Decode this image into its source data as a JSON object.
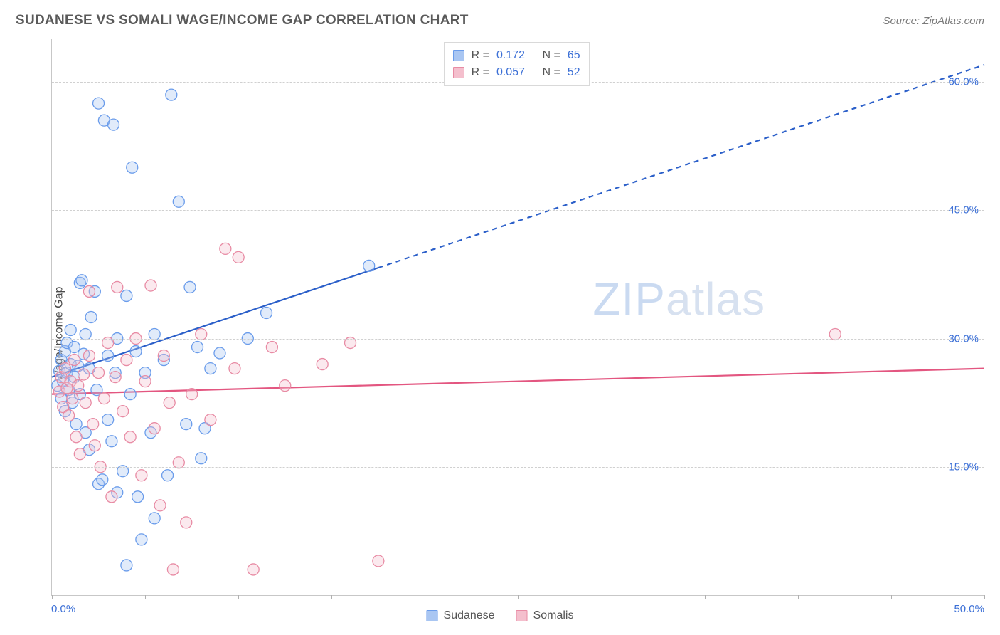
{
  "title": "SUDANESE VS SOMALI WAGE/INCOME GAP CORRELATION CHART",
  "source": "Source: ZipAtlas.com",
  "ylabel": "Wage/Income Gap",
  "watermark_bold": "ZIP",
  "watermark_thin": "atlas",
  "chart": {
    "type": "scatter",
    "background_color": "#ffffff",
    "grid_color": "#d0d0d0",
    "axis_color": "#c7c7c7",
    "tick_label_color": "#3b6fd6",
    "xlim": [
      0,
      50
    ],
    "ylim": [
      0,
      65
    ],
    "yticks": [
      15,
      30,
      45,
      60
    ],
    "ytick_labels": [
      "15.0%",
      "30.0%",
      "45.0%",
      "60.0%"
    ],
    "xtick_positions": [
      0,
      5,
      10,
      15,
      20,
      25,
      30,
      35,
      40,
      45,
      50
    ],
    "x_origin_label": "0.0%",
    "x_max_label": "50.0%",
    "marker_radius": 8,
    "marker_stroke_width": 1.3,
    "marker_fill_opacity": 0.35,
    "series": [
      {
        "name": "Sudanese",
        "color_stroke": "#6a9ceb",
        "color_fill": "#a9c6f2",
        "trend_color": "#2b5fc9",
        "trend_width": 2.2,
        "R": "0.172",
        "N": "65",
        "trend": {
          "x1": 0,
          "y1": 25.5,
          "x2": 50,
          "y2": 62,
          "solid_until_x": 17.5
        },
        "points": [
          [
            0.3,
            24.5
          ],
          [
            0.4,
            26.2
          ],
          [
            0.5,
            23.0
          ],
          [
            0.5,
            27.5
          ],
          [
            0.6,
            25.0
          ],
          [
            0.7,
            28.5
          ],
          [
            0.7,
            21.5
          ],
          [
            0.8,
            26.0
          ],
          [
            0.8,
            29.5
          ],
          [
            0.9,
            24.0
          ],
          [
            1.0,
            27.0
          ],
          [
            1.0,
            31.0
          ],
          [
            1.1,
            22.5
          ],
          [
            1.2,
            25.5
          ],
          [
            1.2,
            29.0
          ],
          [
            1.3,
            20.0
          ],
          [
            1.4,
            26.8
          ],
          [
            1.5,
            23.5
          ],
          [
            1.5,
            36.5
          ],
          [
            1.6,
            36.8
          ],
          [
            1.7,
            28.2
          ],
          [
            1.8,
            19.0
          ],
          [
            1.8,
            30.5
          ],
          [
            2.0,
            26.5
          ],
          [
            2.0,
            17.0
          ],
          [
            2.1,
            32.5
          ],
          [
            2.3,
            35.5
          ],
          [
            2.4,
            24.0
          ],
          [
            2.5,
            13.0
          ],
          [
            2.5,
            57.5
          ],
          [
            2.7,
            13.5
          ],
          [
            2.8,
            55.5
          ],
          [
            3.0,
            20.5
          ],
          [
            3.0,
            28.0
          ],
          [
            3.2,
            18.0
          ],
          [
            3.3,
            55.0
          ],
          [
            3.4,
            26.0
          ],
          [
            3.5,
            30.0
          ],
          [
            3.5,
            12.0
          ],
          [
            3.8,
            14.5
          ],
          [
            4.0,
            35.0
          ],
          [
            4.0,
            3.5
          ],
          [
            4.2,
            23.5
          ],
          [
            4.3,
            50.0
          ],
          [
            4.5,
            28.5
          ],
          [
            4.6,
            11.5
          ],
          [
            4.8,
            6.5
          ],
          [
            5.0,
            26.0
          ],
          [
            5.3,
            19.0
          ],
          [
            5.5,
            30.5
          ],
          [
            5.5,
            9.0
          ],
          [
            6.0,
            27.5
          ],
          [
            6.2,
            14.0
          ],
          [
            6.4,
            58.5
          ],
          [
            6.8,
            46.0
          ],
          [
            7.2,
            20.0
          ],
          [
            7.4,
            36.0
          ],
          [
            7.8,
            29.0
          ],
          [
            8.0,
            16.0
          ],
          [
            8.2,
            19.5
          ],
          [
            8.5,
            26.5
          ],
          [
            9.0,
            28.3
          ],
          [
            10.5,
            30.0
          ],
          [
            11.5,
            33.0
          ],
          [
            17.0,
            38.5
          ]
        ]
      },
      {
        "name": "Somalis",
        "color_stroke": "#e88ba4",
        "color_fill": "#f4bfcd",
        "trend_color": "#e35680",
        "trend_width": 2.2,
        "R": "0.057",
        "N": "52",
        "trend": {
          "x1": 0,
          "y1": 23.5,
          "x2": 50,
          "y2": 26.5,
          "solid_until_x": 50
        },
        "points": [
          [
            0.4,
            23.8
          ],
          [
            0.5,
            25.5
          ],
          [
            0.6,
            22.0
          ],
          [
            0.7,
            26.5
          ],
          [
            0.8,
            24.2
          ],
          [
            0.9,
            21.0
          ],
          [
            1.0,
            25.0
          ],
          [
            1.1,
            23.0
          ],
          [
            1.2,
            27.5
          ],
          [
            1.3,
            18.5
          ],
          [
            1.4,
            24.5
          ],
          [
            1.5,
            16.5
          ],
          [
            1.7,
            25.8
          ],
          [
            1.8,
            22.5
          ],
          [
            2.0,
            28.0
          ],
          [
            2.0,
            35.5
          ],
          [
            2.2,
            20.0
          ],
          [
            2.3,
            17.5
          ],
          [
            2.5,
            26.0
          ],
          [
            2.6,
            15.0
          ],
          [
            2.8,
            23.0
          ],
          [
            3.0,
            29.5
          ],
          [
            3.2,
            11.5
          ],
          [
            3.4,
            25.5
          ],
          [
            3.5,
            36.0
          ],
          [
            3.8,
            21.5
          ],
          [
            4.0,
            27.5
          ],
          [
            4.2,
            18.5
          ],
          [
            4.5,
            30.0
          ],
          [
            4.8,
            14.0
          ],
          [
            5.0,
            25.0
          ],
          [
            5.3,
            36.2
          ],
          [
            5.5,
            19.5
          ],
          [
            5.8,
            10.5
          ],
          [
            6.0,
            28.0
          ],
          [
            6.3,
            22.5
          ],
          [
            6.5,
            3.0
          ],
          [
            6.8,
            15.5
          ],
          [
            7.2,
            8.5
          ],
          [
            7.5,
            23.5
          ],
          [
            8.0,
            30.5
          ],
          [
            8.5,
            20.5
          ],
          [
            9.3,
            40.5
          ],
          [
            9.8,
            26.5
          ],
          [
            10.0,
            39.5
          ],
          [
            10.8,
            3.0
          ],
          [
            11.8,
            29.0
          ],
          [
            12.5,
            24.5
          ],
          [
            14.5,
            27.0
          ],
          [
            16.0,
            29.5
          ],
          [
            17.5,
            4.0
          ],
          [
            42.0,
            30.5
          ]
        ]
      }
    ]
  },
  "legend_top_labels": {
    "R": "R =",
    "N": "N ="
  },
  "legend_bottom": [
    {
      "label": "Sudanese",
      "fill": "#a9c6f2",
      "stroke": "#6a9ceb"
    },
    {
      "label": "Somalis",
      "fill": "#f4bfcd",
      "stroke": "#e88ba4"
    }
  ]
}
